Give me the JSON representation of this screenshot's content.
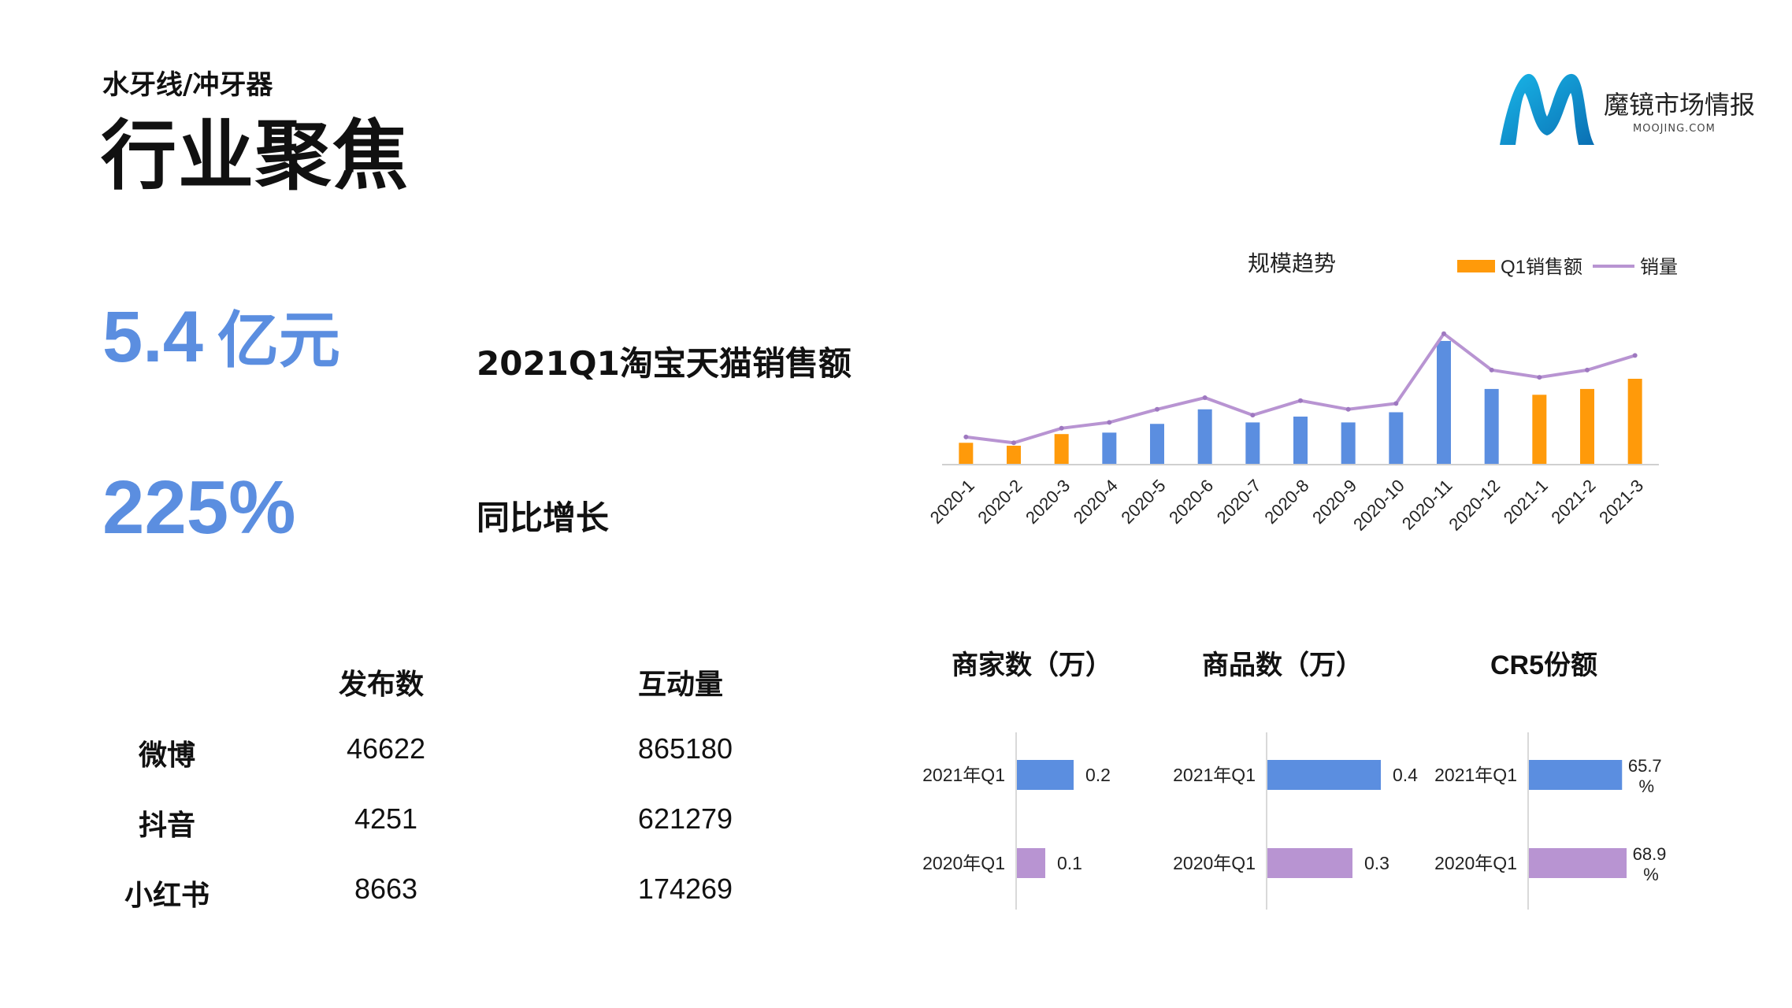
{
  "header": {
    "subtitle": "水牙线/冲牙器",
    "title": "行业聚焦"
  },
  "logo": {
    "name": "魔镜市场情报",
    "domain": "MOOJING.COM"
  },
  "stats": [
    {
      "value": "5.4",
      "unit": "亿元",
      "label": "2021Q1淘宝天猫销售额"
    },
    {
      "value": "225%",
      "label": "同比增长"
    }
  ],
  "social_table": {
    "headers": [
      "发布数",
      "互动量"
    ],
    "rows": [
      {
        "platform": "微博",
        "posts": "46622",
        "interactions": "865180"
      },
      {
        "platform": "抖音",
        "posts": "4251",
        "interactions": "621279"
      },
      {
        "platform": "小红书",
        "posts": "8663",
        "interactions": "174269"
      }
    ]
  },
  "colors": {
    "accent_blue": "#5b8ee0",
    "orange": "#ff9a0a",
    "purple": "#b894d2",
    "axis": "#d0d0d0"
  },
  "chart_data": [
    {
      "type": "bar",
      "title": "规模趋势",
      "legend": {
        "position": "top-right",
        "bar_label": "Q1销售额",
        "line_label": "销量"
      },
      "categories": [
        "2020-1",
        "2020-2",
        "2020-3",
        "2020-4",
        "2020-5",
        "2020-6",
        "2020-7",
        "2020-8",
        "2020-9",
        "2020-10",
        "2020-11",
        "2020-12",
        "2021-1",
        "2021-2",
        "2021-3"
      ],
      "highlight": [
        true,
        true,
        true,
        false,
        false,
        false,
        false,
        false,
        false,
        false,
        false,
        false,
        true,
        true,
        true
      ],
      "series": [
        {
          "name": "销售额",
          "kind": "bar",
          "values": [
            1.5,
            1.3,
            2.1,
            2.2,
            2.8,
            3.8,
            2.9,
            3.3,
            2.9,
            3.6,
            8.5,
            5.2,
            4.8,
            5.2,
            5.9
          ]
        },
        {
          "name": "销量",
          "kind": "line",
          "values": [
            1.9,
            1.5,
            2.5,
            2.9,
            3.8,
            4.6,
            3.4,
            4.4,
            3.8,
            4.2,
            9.0,
            6.5,
            6.0,
            6.5,
            7.5
          ]
        }
      ],
      "ylim": [
        0,
        10
      ]
    },
    {
      "type": "bar",
      "orientation": "horizontal",
      "title": "商家数（万）",
      "categories": [
        "2021年Q1",
        "2020年Q1"
      ],
      "values": [
        0.2,
        0.1
      ],
      "value_labels": [
        "0.2",
        "0.1"
      ],
      "xlim": [
        0,
        0.5
      ]
    },
    {
      "type": "bar",
      "orientation": "horizontal",
      "title": "商品数（万）",
      "categories": [
        "2021年Q1",
        "2020年Q1"
      ],
      "values": [
        0.4,
        0.3
      ],
      "value_labels": [
        "0.4",
        "0.3"
      ],
      "xlim": [
        0,
        0.5
      ]
    },
    {
      "type": "bar",
      "orientation": "horizontal",
      "title": "CR5份额",
      "categories": [
        "2021年Q1",
        "2020年Q1"
      ],
      "values": [
        65.7,
        68.9
      ],
      "value_labels": [
        "65.7%",
        "68.9%"
      ],
      "xlim": [
        0,
        100
      ]
    }
  ]
}
